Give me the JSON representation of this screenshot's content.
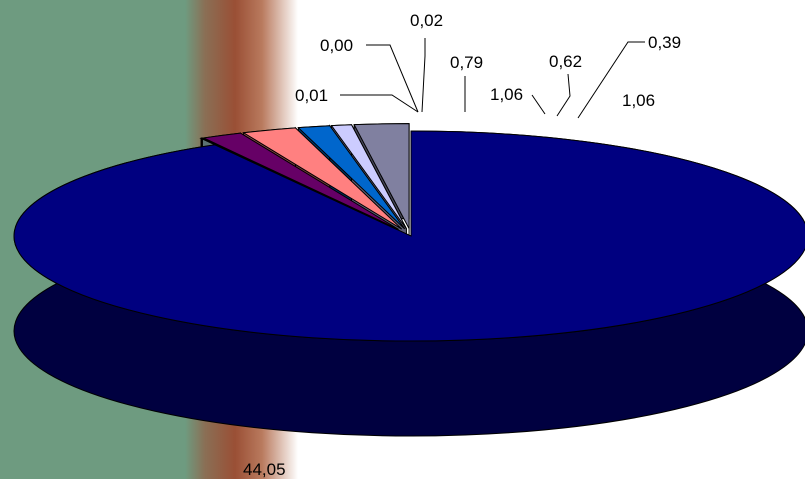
{
  "chart_data": {
    "type": "pie",
    "style": "3d-exploded",
    "series": [
      {
        "values": [
          44.05,
          0.01,
          0.0,
          0.02,
          0.79,
          1.06,
          0.62,
          0.39,
          1.06
        ],
        "labels": [
          "44,05",
          "0,01",
          "0,00",
          "0,02",
          "0,79",
          "1,06",
          "0,62",
          "0,39",
          "1,06"
        ],
        "colors": [
          "#000080",
          "#ffffff",
          "#ffffcc",
          "#ccffff",
          "#660066",
          "#ff8080",
          "#0066cc",
          "#ccccff",
          "#8080a0"
        ]
      }
    ],
    "data_labels": true,
    "legend": "none"
  }
}
